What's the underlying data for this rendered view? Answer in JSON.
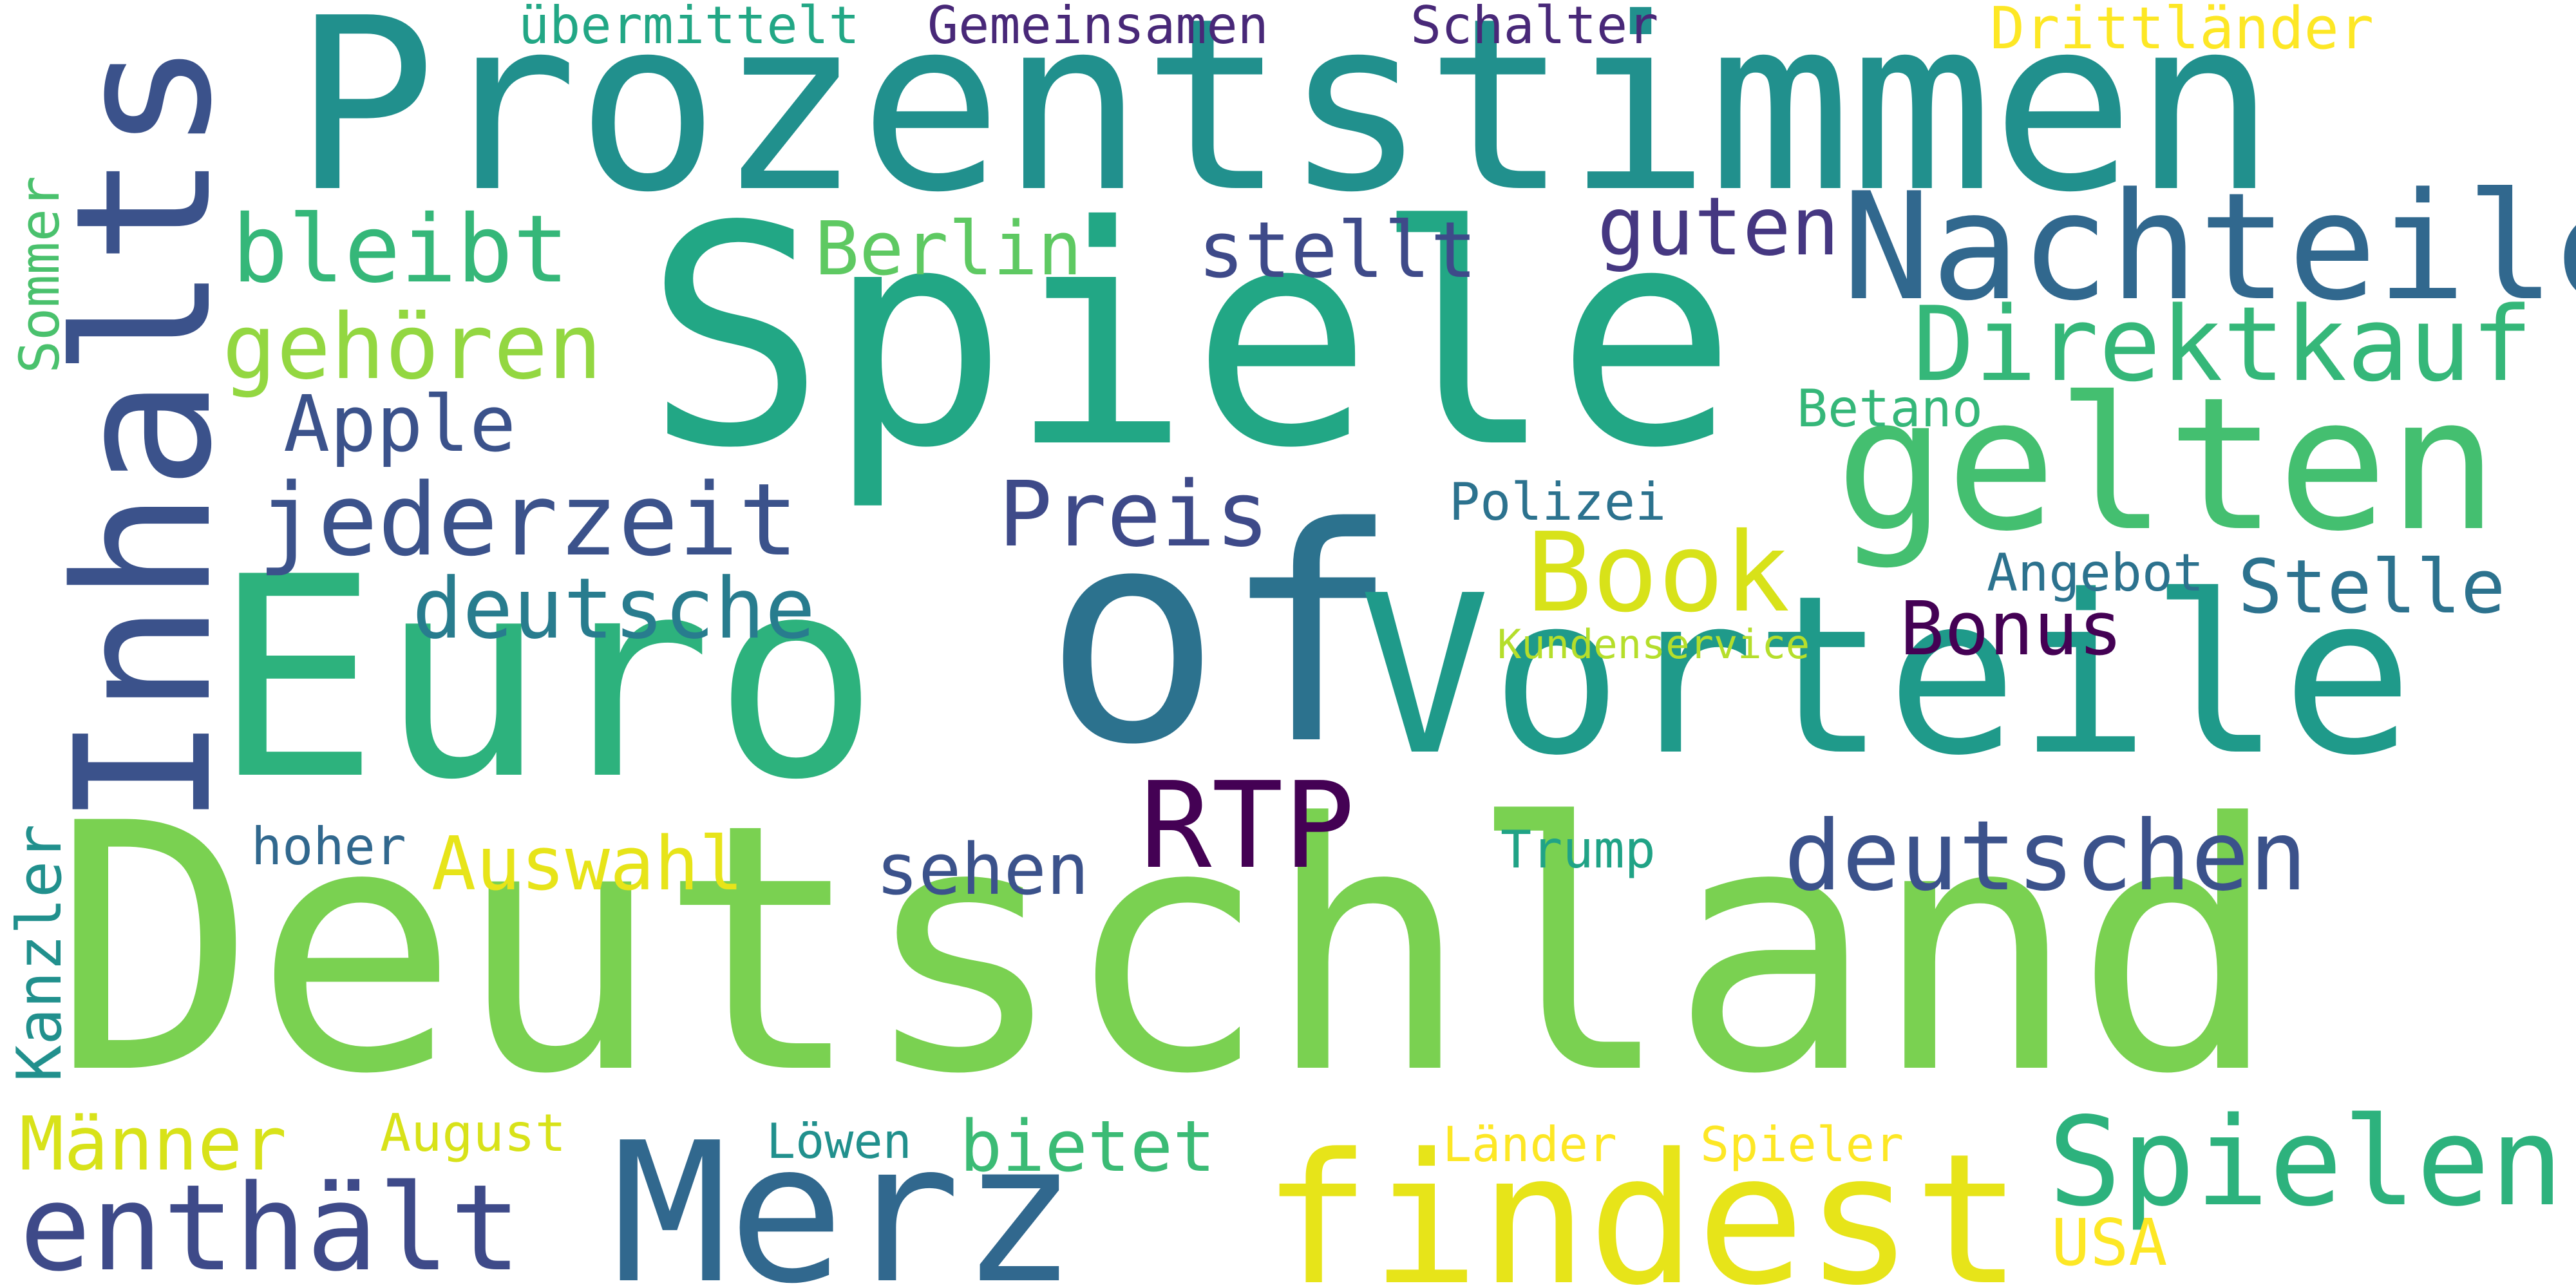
{
  "colors": {
    "background": "#ffffff"
  },
  "words": [
    {
      "id": "prozentstimmen",
      "text": "Prozentstimmen",
      "color": "#21908d",
      "rotated": false
    },
    {
      "id": "spiele",
      "text": "Spiele",
      "color": "#22a785",
      "rotated": false
    },
    {
      "id": "deutschland",
      "text": "Deutschland",
      "color": "#7ad151",
      "rotated": false
    },
    {
      "id": "euro",
      "text": "Euro",
      "color": "#2db27d",
      "rotated": false
    },
    {
      "id": "of",
      "text": "of",
      "color": "#2c728e",
      "rotated": false
    },
    {
      "id": "vorteile",
      "text": "Vorteile",
      "color": "#1f9a8a",
      "rotated": false
    },
    {
      "id": "inhalts",
      "text": "Inhalts",
      "color": "#3b528b",
      "rotated": true
    },
    {
      "id": "gelten",
      "text": "gelten",
      "color": "#44bf70",
      "rotated": false
    },
    {
      "id": "nachteile",
      "text": "Nachteile",
      "color": "#31688e",
      "rotated": false
    },
    {
      "id": "merz",
      "text": "Merz",
      "color": "#31688e",
      "rotated": false
    },
    {
      "id": "findest",
      "text": "findest",
      "color": "#e7e419",
      "rotated": false
    },
    {
      "id": "spielen",
      "text": "Spielen",
      "color": "#2db27d",
      "rotated": false
    },
    {
      "id": "enthaelt",
      "text": "enthält",
      "color": "#3e4a89",
      "rotated": false
    },
    {
      "id": "direktkauf",
      "text": "Direktkauf",
      "color": "#35b779",
      "rotated": false
    },
    {
      "id": "book",
      "text": "Book",
      "color": "#d8e219",
      "rotated": false
    },
    {
      "id": "rtp",
      "text": "RTP",
      "color": "#440154",
      "rotated": false
    },
    {
      "id": "deutschen",
      "text": "deutschen",
      "color": "#3b528b",
      "rotated": false
    },
    {
      "id": "jederzeit",
      "text": "jederzeit",
      "color": "#3b528b",
      "rotated": false
    },
    {
      "id": "gehoeren",
      "text": "gehören",
      "color": "#93d741",
      "rotated": false
    },
    {
      "id": "bleibt",
      "text": "bleibt",
      "color": "#35b779",
      "rotated": false
    },
    {
      "id": "deutsche",
      "text": "deutsche",
      "color": "#287c8e",
      "rotated": false
    },
    {
      "id": "preis",
      "text": "Preis",
      "color": "#3e4a89",
      "rotated": false
    },
    {
      "id": "stellt",
      "text": "stellt",
      "color": "#3e4a89",
      "rotated": false
    },
    {
      "id": "guten",
      "text": "guten",
      "color": "#453781",
      "rotated": false
    },
    {
      "id": "berlin",
      "text": "Berlin",
      "color": "#5ec962",
      "rotated": false
    },
    {
      "id": "apple",
      "text": "Apple",
      "color": "#3b528b",
      "rotated": false
    },
    {
      "id": "bonus",
      "text": "Bonus",
      "color": "#440154",
      "rotated": false
    },
    {
      "id": "stelle",
      "text": "Stelle",
      "color": "#2c728e",
      "rotated": false
    },
    {
      "id": "auswahl",
      "text": "Auswahl",
      "color": "#e7e419",
      "rotated": false
    },
    {
      "id": "sehen",
      "text": "sehen",
      "color": "#3b528b",
      "rotated": false
    },
    {
      "id": "bietet",
      "text": "bietet",
      "color": "#3bbb75",
      "rotated": false
    },
    {
      "id": "maenner",
      "text": "Männer",
      "color": "#d8e219",
      "rotated": false
    },
    {
      "id": "kanzler",
      "text": "Kanzler",
      "color": "#21908d",
      "rotated": true
    },
    {
      "id": "sommer",
      "text": "Sommer",
      "color": "#4ac16d",
      "rotated": true
    },
    {
      "id": "uebermittelt",
      "text": "übermittelt",
      "color": "#22a785",
      "rotated": false
    },
    {
      "id": "gemeinsamen",
      "text": "Gemeinsamen",
      "color": "#482878",
      "rotated": false
    },
    {
      "id": "schalter",
      "text": "Schalter",
      "color": "#482878",
      "rotated": false
    },
    {
      "id": "drittlaender",
      "text": "Drittländer",
      "color": "#fde725",
      "rotated": false
    },
    {
      "id": "betano",
      "text": "Betano",
      "color": "#35b779",
      "rotated": false
    },
    {
      "id": "polizei",
      "text": "Polizei",
      "color": "#2c728e",
      "rotated": false
    },
    {
      "id": "angebot",
      "text": "Angebot",
      "color": "#2c728e",
      "rotated": false
    },
    {
      "id": "kundenservice",
      "text": "Kundenservice",
      "color": "#b5de2b",
      "rotated": false
    },
    {
      "id": "hoher",
      "text": "hoher",
      "color": "#31688e",
      "rotated": false
    },
    {
      "id": "trump",
      "text": "Trump",
      "color": "#20a386",
      "rotated": false
    },
    {
      "id": "august",
      "text": "August",
      "color": "#d8e219",
      "rotated": false
    },
    {
      "id": "loewen",
      "text": "Löwen",
      "color": "#21908d",
      "rotated": false
    },
    {
      "id": "laender",
      "text": "Länder",
      "color": "#fde725",
      "rotated": false
    },
    {
      "id": "spieler",
      "text": "Spieler",
      "color": "#fde725",
      "rotated": false
    },
    {
      "id": "usa",
      "text": "USA",
      "color": "#fde725",
      "rotated": false
    }
  ]
}
